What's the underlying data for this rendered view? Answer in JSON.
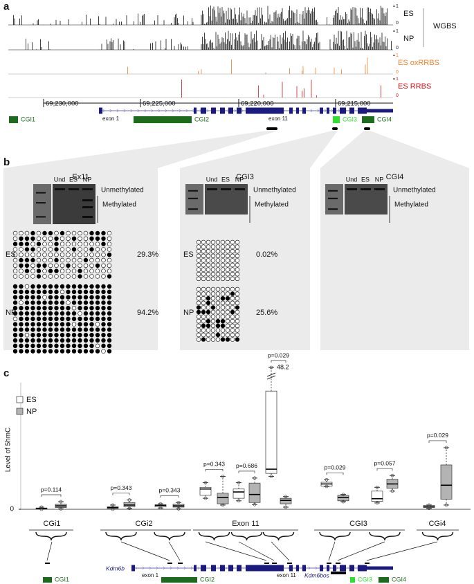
{
  "panel_a": {
    "label": "a",
    "tracks": [
      {
        "name": "ES",
        "scale_max": 1,
        "scale_min": 0
      },
      {
        "name": "NP",
        "scale_max": 1,
        "scale_min": 0
      },
      {
        "name": "ES oxRRBS",
        "scale_max": 1,
        "scale_min": 0
      },
      {
        "name": "ES RRBS",
        "scale_max": 1,
        "scale_min": 0
      }
    ],
    "group_label": "WGBS",
    "coordinates": [
      "69,230,000",
      "69,225,000",
      "69,220,000",
      "69,215,000"
    ],
    "exon_labels": [
      "exon 1",
      "exon 11"
    ],
    "cgi_labels": [
      "CGI1",
      "CGI2",
      "CGI3",
      "CGI4"
    ]
  },
  "panel_b": {
    "label": "b",
    "sample_labels": [
      "ES",
      "NP"
    ],
    "regions": [
      {
        "title": "Ex11",
        "lanes": [
          "Und",
          "ES",
          "NP"
        ],
        "unmethylated": "Unmethylated",
        "methylated": "Methylated",
        "percents": [
          {
            "value": 29.3,
            "label": "29.3%"
          },
          {
            "value": 94.2,
            "label": "94.2%"
          }
        ]
      },
      {
        "title": "CGI3",
        "lanes": [
          "Und",
          "ES",
          "NP"
        ],
        "unmethylated": "Unmethylated",
        "methylated": "Methylated",
        "percents": [
          {
            "value": 0.02,
            "label": "0.02%"
          },
          {
            "value": 25.6,
            "label": "25.6%"
          }
        ]
      },
      {
        "title": "CGI4",
        "lanes": [
          "Und",
          "ES",
          "NP"
        ],
        "unmethylated": "Unmethylated",
        "methylated": "Methylated",
        "percents": []
      }
    ]
  },
  "chart_data": {
    "type": "box",
    "label": "c",
    "y_label": "Level of 5hmC",
    "ylim": [
      0,
      30
    ],
    "yticks": [
      0
    ],
    "series": [
      {
        "name": "ES",
        "color": "#ffffff"
      },
      {
        "name": "NP",
        "color": "#b3b3b3"
      }
    ],
    "groups": [
      {
        "name": "CGi1",
        "comparisons": [
          {
            "p": "p=0.114",
            "boxes": [
              {
                "min": 0,
                "q1": 0.1,
                "median": 0.2,
                "q3": 0.3,
                "max": 0.5
              },
              {
                "min": 0.1,
                "q1": 0.4,
                "median": 0.8,
                "q3": 1.2,
                "max": 1.8
              }
            ]
          }
        ]
      },
      {
        "name": "CGi2",
        "comparisons": [
          {
            "p": "p=0.343",
            "boxes": [
              {
                "min": 0,
                "q1": 0.2,
                "median": 0.4,
                "q3": 0.6,
                "max": 1.0
              },
              {
                "min": 0.2,
                "q1": 0.6,
                "median": 1.0,
                "q3": 1.6,
                "max": 2.2
              }
            ]
          },
          {
            "p": "p=0.343",
            "boxes": [
              {
                "min": 0.3,
                "q1": 0.6,
                "median": 0.9,
                "q3": 1.1,
                "max": 1.3
              },
              {
                "min": 0.1,
                "q1": 0.5,
                "median": 0.8,
                "q3": 1.2,
                "max": 1.6
              }
            ]
          }
        ]
      },
      {
        "name": "Exon 11",
        "comparisons": [
          {
            "p": "p=0.343",
            "boxes": [
              {
                "min": 2.6,
                "q1": 3.3,
                "median": 4.8,
                "q3": 5.2,
                "max": 6.3
              },
              {
                "min": 1.0,
                "q1": 1.3,
                "median": 2.8,
                "q3": 3.8,
                "max": 7.8
              }
            ]
          },
          {
            "p": "p=0.686",
            "boxes": [
              {
                "min": 2.0,
                "q1": 2.6,
                "median": 4.1,
                "q3": 4.8,
                "max": 6.3
              },
              {
                "min": 1.1,
                "q1": 1.6,
                "median": 3.5,
                "q3": 6.2,
                "max": 7.4
              }
            ]
          },
          {
            "p": "p=0.029",
            "boxes": [
              {
                "min": 7.8,
                "q1": 8.5,
                "median": 9.5,
                "q3": 28,
                "max": 48.2
              },
              {
                "min": 0.5,
                "q1": 1.3,
                "median": 2.1,
                "q3": 2.6,
                "max": 3.0
              }
            ]
          }
        ]
      },
      {
        "name": "CGI3",
        "comparisons": [
          {
            "p": "p=0.029",
            "boxes": [
              {
                "min": 5.4,
                "q1": 5.5,
                "median": 6.0,
                "q3": 6.4,
                "max": 7.0
              },
              {
                "min": 1.8,
                "q1": 2.0,
                "median": 2.8,
                "q3": 3.3,
                "max": 3.5
              }
            ]
          },
          {
            "p": "p=0.057",
            "boxes": [
              {
                "min": 1.5,
                "q1": 1.9,
                "median": 2.5,
                "q3": 4.3,
                "max": 5.2
              },
              {
                "min": 4.3,
                "q1": 5.0,
                "median": 6.0,
                "q3": 7.1,
                "max": 8.0
              }
            ]
          }
        ]
      },
      {
        "name": "CGi4",
        "comparisons": [
          {
            "p": "p=0.029",
            "boxes": [
              {
                "min": 0.2,
                "q1": 0.4,
                "median": 0.6,
                "q3": 0.9,
                "max": 1.0
              },
              {
                "min": 1.0,
                "q1": 2.4,
                "median": 5.7,
                "q3": 10.5,
                "max": 14.6
              }
            ]
          }
        ]
      }
    ]
  },
  "gene_map": {
    "genes": [
      "Kdm6b",
      "Kdm6bos"
    ],
    "exon_labels": [
      "exon 1",
      "exon 11"
    ],
    "cgi_labels": [
      "CGI1",
      "CGI2",
      "CGI3",
      "CGI4"
    ]
  }
}
